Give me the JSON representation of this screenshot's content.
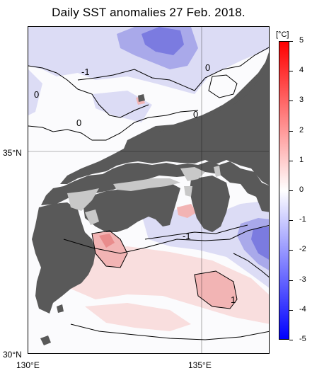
{
  "title": "Daily SST anomalies 27 Feb. 2018.",
  "axes": {
    "lon_labels": [
      "130°E",
      "135°E"
    ],
    "lat_labels": [
      "35°N",
      "30°N"
    ]
  },
  "contour_labels": [
    "-1",
    "0",
    "0",
    "0",
    "0",
    "-1",
    "1"
  ],
  "colorbar": {
    "unit": "[°C]",
    "ticks": [
      "5",
      "4",
      "3",
      "2",
      "1",
      "0",
      "-1",
      "-2",
      "-3",
      "-4",
      "-5"
    ],
    "colors": {
      "top": "#ff0000",
      "mid": "#ffffff",
      "bottom": "#0000ff"
    }
  },
  "colors": {
    "land": "#595959",
    "lake": "#c8c8c8",
    "neg_light": "#dcdcf5",
    "neg_mid": "#a9a9ea",
    "neg_deep": "#7b7be0",
    "pos_light": "#f9dede",
    "pos_mid": "#f2b4b4",
    "pos_deep": "#e98c8c"
  }
}
